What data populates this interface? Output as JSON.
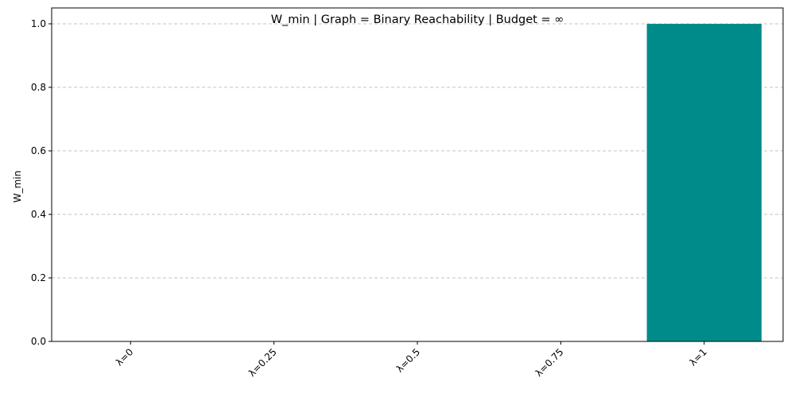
{
  "chart_data": {
    "type": "bar",
    "title": "W_min | Graph = Binary Reachability | Budget = ∞",
    "xlabel": "",
    "ylabel": "W_min",
    "categories": [
      "λ=0",
      "λ=0.25",
      "λ=0.5",
      "λ=0.75",
      "λ=1"
    ],
    "values": [
      0,
      0,
      0,
      0,
      1.0
    ],
    "ylim": [
      0,
      1.05
    ],
    "yticks": [
      0.0,
      0.2,
      0.4,
      0.6,
      0.8,
      1.0
    ],
    "ytick_labels": [
      "0.0",
      "0.2",
      "0.4",
      "0.6",
      "0.8",
      "1.0"
    ],
    "bar_color": "#008b8b",
    "grid": {
      "axis": "y",
      "style": "dashed",
      "color": "#b0b0b0"
    },
    "xtick_rotation_deg": 45,
    "legend": "none"
  }
}
